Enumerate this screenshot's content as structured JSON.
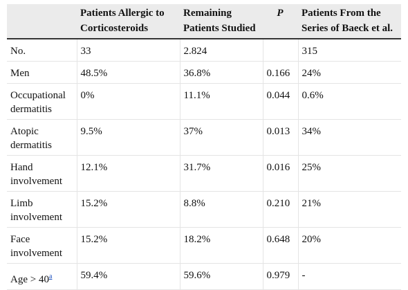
{
  "headers": [
    "",
    "Patients Allergic to Corticosteroids",
    "Remaining Patients Studied",
    "P",
    "Patients From the Series of Baeck et al."
  ],
  "rows": [
    [
      "No.",
      "33",
      "2.824",
      "",
      "315"
    ],
    [
      "Men",
      "48.5%",
      "36.8%",
      "0.166",
      "24%"
    ],
    [
      "Occupational dermatitis",
      "0%",
      "11.1%",
      "0.044",
      "0.6%"
    ],
    [
      "Atopic dermatitis",
      "9.5%",
      "37%",
      "0.013",
      "34%"
    ],
    [
      "Hand involvement",
      "12.1%",
      "31.7%",
      "0.016",
      "25%"
    ],
    [
      "Limb involvement",
      "15.2%",
      "8.8%",
      "0.210",
      "21%"
    ],
    [
      "Face involvement",
      "15.2%",
      "18.2%",
      "0.648",
      "20%"
    ],
    [
      "Age > 40",
      "59.4%",
      "59.6%",
      "0.979",
      "-"
    ]
  ],
  "footnote_marker": "a"
}
